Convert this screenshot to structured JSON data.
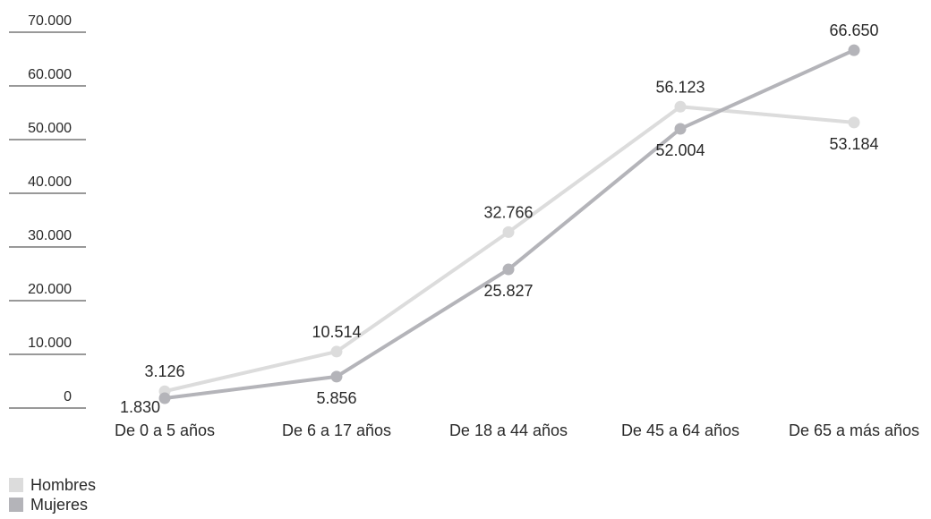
{
  "chart_data": {
    "type": "line",
    "title": "",
    "xlabel": "",
    "ylabel": "",
    "ylim": [
      0,
      70000
    ],
    "grid": false,
    "legend_position": "bottom-left",
    "y_ticks": [
      {
        "value": 0,
        "label": "0"
      },
      {
        "value": 10000,
        "label": "10.000"
      },
      {
        "value": 20000,
        "label": "20.000"
      },
      {
        "value": 30000,
        "label": "30.000"
      },
      {
        "value": 40000,
        "label": "40.000"
      },
      {
        "value": 50000,
        "label": "50.000"
      },
      {
        "value": 60000,
        "label": "60.000"
      },
      {
        "value": 70000,
        "label": "70.000"
      }
    ],
    "categories": [
      "De 0 a 5 años",
      "De 6 a 17 años",
      "De 18 a 44 años",
      "De 45 a 64 años",
      "De 65 a más años"
    ],
    "series": [
      {
        "name": "Hombres",
        "color": "#dcdcdc",
        "values": [
          3126,
          10514,
          32766,
          56123,
          53184
        ],
        "labels": [
          "3.126",
          "10.514",
          "32.766",
          "56.123",
          "53.184"
        ],
        "label_positions": [
          "above",
          "above",
          "above",
          "above",
          "below"
        ]
      },
      {
        "name": "Mujeres",
        "color": "#b4b4b9",
        "values": [
          1830,
          5856,
          25827,
          52004,
          66650
        ],
        "labels": [
          "1.830",
          "5.856",
          "25.827",
          "52.004",
          "66.650"
        ],
        "label_positions": [
          "right",
          "below",
          "below",
          "below",
          "above"
        ]
      }
    ]
  }
}
